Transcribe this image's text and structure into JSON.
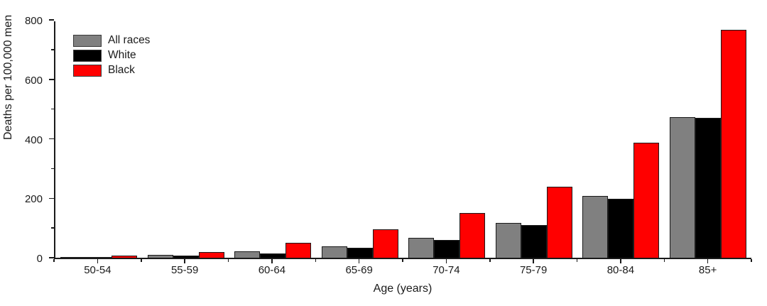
{
  "figure": {
    "background": "#ffffff",
    "axis_color": "#1a1a1a",
    "text_color": "#1a1a1a"
  },
  "chart_data": {
    "type": "bar",
    "title": "",
    "xlabel": "Age (years)",
    "ylabel": "Deaths per 100,000 men",
    "categories": [
      "50-54",
      "55-59",
      "60-64",
      "65-69",
      "70-74",
      "75-79",
      "80-84",
      "85+"
    ],
    "series": [
      {
        "name": "All races",
        "color": "#808080",
        "values": [
          2,
          9,
          21,
          38,
          66,
          117,
          207,
          474
        ]
      },
      {
        "name": "White",
        "color": "#000000",
        "values": [
          1,
          7,
          15,
          33,
          60,
          110,
          198,
          470
        ]
      },
      {
        "name": "Black",
        "color": "#ff0000",
        "values": [
          7,
          20,
          50,
          96,
          150,
          238,
          388,
          766
        ]
      }
    ],
    "ylim": [
      0,
      800
    ],
    "yticks": [
      0,
      200,
      400,
      600,
      800
    ],
    "minor_yticks": [
      100,
      300,
      500,
      700
    ],
    "legend_position": "top-left",
    "grid": false,
    "bar_border_color": "#1a1a1a"
  }
}
